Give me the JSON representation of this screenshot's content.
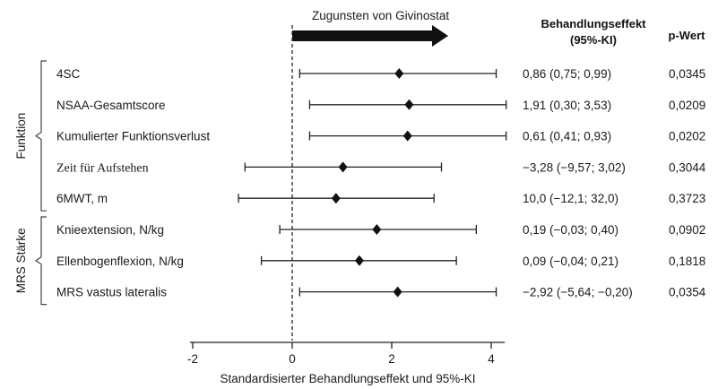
{
  "chart_data": {
    "type": "forest",
    "arrow_label": "Zugunsten von Givinostat",
    "effect_header": [
      "Behandlungseffekt",
      "(95%-KI)"
    ],
    "p_header": "p-Wert",
    "xlabel": "Standardisierter Behandlungseffekt und 95%-KI",
    "xlim": [
      -2,
      5
    ],
    "xticks": [
      -2,
      0,
      2,
      4
    ],
    "reference_line": 0,
    "groups": [
      {
        "name": "Funktion",
        "rows": [
          0,
          1,
          2,
          3,
          4
        ]
      },
      {
        "name": "MRS Stärke",
        "rows": [
          5,
          6,
          7
        ]
      }
    ],
    "rows": [
      {
        "label": "4SC",
        "point": 2.15,
        "low": 0.15,
        "high": 4.1,
        "effect_text": "0,86 (0,75; 0,99)",
        "p": "0,0345"
      },
      {
        "label": "NSAA-Gesamtscore",
        "point": 2.35,
        "low": 0.35,
        "high": 4.3,
        "effect_text": "1,91 (0,30; 3,53)",
        "p": "0,0209"
      },
      {
        "label": "Kumulierter Funktionsverlust",
        "point": 2.32,
        "low": 0.35,
        "high": 4.3,
        "effect_text": "0,61 (0,41; 0,93)",
        "p": "0,0202"
      },
      {
        "label": "Zeit für Aufstehen",
        "point": 1.02,
        "low": -0.95,
        "high": 3.0,
        "effect_text": "−3,28 (−9,57; 3,02)",
        "p": "0,3044",
        "serif": true
      },
      {
        "label": "6MWT, m",
        "point": 0.88,
        "low": -1.08,
        "high": 2.85,
        "effect_text": "10,0 (−12,1; 32,0)",
        "p": "0,3723"
      },
      {
        "label": "Knieextension, N/kg",
        "point": 1.7,
        "low": -0.25,
        "high": 3.7,
        "effect_text": "0,19 (−0,03; 0,40)",
        "p": "0,0902"
      },
      {
        "label": "Ellenbogenflexion, N/kg",
        "point": 1.35,
        "low": -0.62,
        "high": 3.3,
        "effect_text": "0,09 (−0,04; 0,21)",
        "p": "0,1818"
      },
      {
        "label": "MRS vastus lateralis",
        "point": 2.12,
        "low": 0.15,
        "high": 4.1,
        "effect_text": "−2,92 (−5,64; −0,20)",
        "p": "0,0354"
      }
    ]
  }
}
